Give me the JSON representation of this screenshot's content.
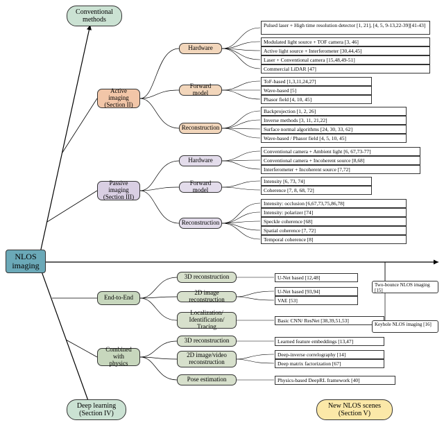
{
  "root": {
    "label": "NLOS\nimaging",
    "color": "#6ba9b8"
  },
  "axes": {
    "top": {
      "label": "Conventional\nmethods",
      "color": "#cbe2d3"
    },
    "bottom": {
      "label": "Deep learning\n(Section IV)",
      "color": "#cbe2d3"
    },
    "right": {
      "label": "New NLOS scenes\n(Section V)",
      "color": "#fbe8a8"
    }
  },
  "colors": {
    "active": "#f2c6a8",
    "passive": "#d9cfe3",
    "e2e": "#c7d7bd",
    "combined": "#c7d7bd",
    "hw": "#f2d6bb",
    "fwd": "#f2d6bb",
    "recon": "#f2d6bb",
    "hw2": "#e3dceb",
    "fwd2": "#e3dceb",
    "recon2": "#e3dceb",
    "sub_e2e": "#d7e0cc",
    "sub_comb": "#d7e0cc",
    "new": "#fdf3d0"
  },
  "mid": {
    "active": "Active imaging\n(Section II)",
    "passive": "Passive imaging\n(Section III)",
    "e2e": "End-to-End",
    "combined": "Combined with\nphysics"
  },
  "sub": {
    "hw": "Hardware",
    "fwd": "Forward model",
    "recon": "Reconstruction",
    "hw2": "Hardware",
    "fwd2": "Forward model",
    "recon2": "Reconstruction",
    "e2e_3d": "3D reconstruction",
    "e2e_2d": "2D image reconstruction",
    "e2e_loc": "Localization/\nIdentification/ Tracing",
    "c_3d": "3D reconstruction",
    "c_2d": "2D image/video\nreconstruction",
    "c_pose": "Pose estimation"
  },
  "leaves": {
    "hw": [
      "Pulsed laser + High time resolution detector [1, 21], [4, 5, 9-13,22-39][41-43]",
      "Modulated light source + TOF camera [3, 46]",
      "Active light source + Interferometer [30,44,45]",
      "Laser + Conventional camera [15,48,49-51]",
      "Commercial LiDAR [47]"
    ],
    "fwd": [
      "ToF-based [1,3,11,24,27]",
      "Wave-based [5]",
      "Phasor field [4, 10, 45]"
    ],
    "recon": [
      "Backprojection [1, 2, 26]",
      "Inverse methods [3, 11, 21,22]",
      "Surface normal algorithms [24, 30, 33, 62]",
      "Wave-based / Phasor field [4, 5, 10, 45]"
    ],
    "hw2": [
      "Conventional camera + Ambient light [6, 67,73-77]",
      "Conventional camera + Incoherent source [8,68]",
      "Interferometer + Incoherent source [7,72]"
    ],
    "fwd2": [
      "Intensity [6, 73, 74]",
      "Coherence [7, 8, 68, 72]"
    ],
    "recon2": [
      "Intensity: occlusion [6,67,73,75,86,78]",
      "Intensity: polarizer [74]",
      "Speckle coherence [68]",
      "Spatial coherence [7, 72]",
      "Temporal coherence [8]"
    ],
    "e2e_3d": [
      "U-Net based [12,48]"
    ],
    "e2e_2d": [
      "U-Net based [93,94]",
      "VAE [53]"
    ],
    "e2e_loc": [
      "Basic CNN/ ResNet [38,39,51,53]"
    ],
    "c_3d": [
      "Learned feature embeddings [13,47]"
    ],
    "c_2d": [
      "Deep-inverse correlography [14]",
      "Deep matrix factorization [67]"
    ],
    "c_pose": [
      "Physics-based DeepRL framework [40]"
    ],
    "new": [
      "Two-bounce NLOS imaging [15]",
      "Keyhole NLOS imaging [16]"
    ]
  }
}
